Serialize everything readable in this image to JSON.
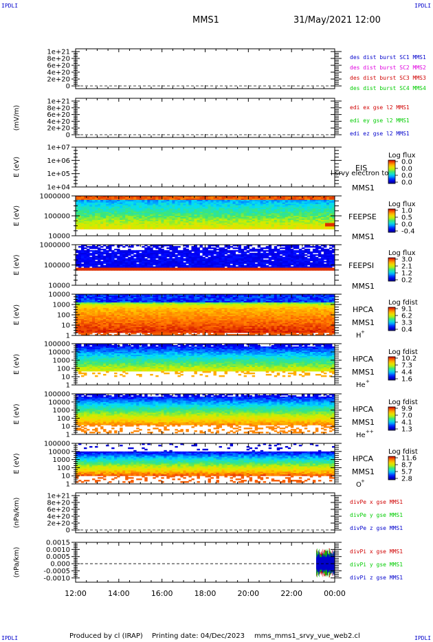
{
  "header": {
    "corner_label": "IPDLI",
    "spacecraft": "MMS1",
    "date_time": "31/May/2021 12:00"
  },
  "footer": {
    "produced_by": "Produced by cl (IRAP)",
    "printing_date": "Printing date: 04/Dec/2023",
    "file": "mms_mms1_srvy_vue_web2.cl"
  },
  "colors": {
    "blue": "#0000cc",
    "magenta": "#e000e0",
    "red": "#d00000",
    "green": "#00cc00"
  },
  "chart_data": [
    {
      "type": "line",
      "ylabel": "",
      "yticks": [
        "1e+21",
        "8e+20",
        "6e+20",
        "4e+20",
        "2e+20",
        "0"
      ],
      "zero_dashed": true,
      "legend": [
        {
          "text": "des dist burst SC1 MMS1",
          "color": "#0000cc"
        },
        {
          "text": "des dist burst SC2 MMS2",
          "color": "#e000e0"
        },
        {
          "text": "des dist burst SC3 MMS3",
          "color": "#d00000"
        },
        {
          "text": "des dist burst SC4 MMS4",
          "color": "#00cc00"
        }
      ]
    },
    {
      "type": "line",
      "ylabel": "(mV/m)",
      "yticks": [
        "1e+21",
        "8e+20",
        "6e+20",
        "4e+20",
        "2e+20",
        "0"
      ],
      "zero_dashed": true,
      "legend": [
        {
          "text": "edi ex gse l2 MMS1",
          "color": "#d00000"
        },
        {
          "text": "edi ey gse l2 MMS1",
          "color": "#00cc00"
        },
        {
          "text": "edi ez gse l2 MMS1",
          "color": "#0000cc"
        }
      ]
    },
    {
      "type": "heatmap",
      "ylabel": "E (eV)",
      "yticks": [
        "1e+07",
        "1e+06",
        "1e+05",
        "1e+04"
      ],
      "instrument": "EIS",
      "spacecraft": "MMS1",
      "overlay_text": "l srvy electron to",
      "colorbar_title": "Log flux",
      "colorbar_ticks": [
        "0.0",
        "0.0",
        "0.0",
        "0.0"
      ],
      "filled": false
    },
    {
      "type": "heatmap",
      "ylabel": "E (eV)",
      "yticks": [
        "1000000",
        "100000",
        "10000"
      ],
      "instrument": "FEEPSE",
      "spacecraft": "MMS1",
      "colorbar_title": "Log flux",
      "colorbar_ticks": [
        "1.0",
        "0.5",
        "0.0",
        "-0.4"
      ],
      "filled": true,
      "style": "feepse"
    },
    {
      "type": "heatmap",
      "ylabel": "E (eV)",
      "yticks": [
        "1000000",
        "100000",
        "10000"
      ],
      "instrument": "FEEPSI",
      "spacecraft": "MMS1",
      "colorbar_title": "Log flux",
      "colorbar_ticks": [
        "3.0",
        "2.1",
        "1.2",
        "0.2"
      ],
      "filled": true,
      "style": "feepsi"
    },
    {
      "type": "heatmap",
      "ylabel": "E (eV)",
      "yticks": [
        "10000",
        "1000",
        "100",
        "10",
        "1"
      ],
      "instrument": "HPCA",
      "spacecraft": "MMS1",
      "species": "H",
      "species_sup": "+",
      "colorbar_title": "Log fdist",
      "colorbar_ticks": [
        "9.1",
        "6.2",
        "3.3",
        "0.4"
      ],
      "filled": true,
      "style": "hplus"
    },
    {
      "type": "heatmap",
      "ylabel": "E (eV)",
      "yticks": [
        "100000",
        "10000",
        "1000",
        "100",
        "10",
        "1"
      ],
      "instrument": "HPCA",
      "spacecraft": "MMS1",
      "species": "He",
      "species_sup": "+",
      "colorbar_title": "Log fdist",
      "colorbar_ticks": [
        "10.2",
        "7.3",
        "4.4",
        "1.6"
      ],
      "filled": true,
      "style": "heplus"
    },
    {
      "type": "heatmap",
      "ylabel": "E (eV)",
      "yticks": [
        "100000",
        "10000",
        "1000",
        "100",
        "10",
        "1"
      ],
      "instrument": "HPCA",
      "spacecraft": "MMS1",
      "species": "He",
      "species_sup": "++",
      "colorbar_title": "Log fdist",
      "colorbar_ticks": [
        "9.9",
        "7.0",
        "4.1",
        "1.3"
      ],
      "filled": true,
      "style": "heplusplus"
    },
    {
      "type": "heatmap",
      "ylabel": "E (eV)",
      "yticks": [
        "100000",
        "10000",
        "1000",
        "100",
        "10",
        "1"
      ],
      "instrument": "HPCA",
      "spacecraft": "MMS1",
      "species": "O",
      "species_sup": "+",
      "colorbar_title": "Log fdist",
      "colorbar_ticks": [
        "11.6",
        "8.7",
        "5.7",
        "2.8"
      ],
      "filled": true,
      "style": "oplus"
    },
    {
      "type": "line",
      "ylabel": "(nPa/km)",
      "yticks": [
        "1e+21",
        "8e+20",
        "6e+20",
        "4e+20",
        "2e+20",
        "0"
      ],
      "zero_dashed": true,
      "legend": [
        {
          "text": "divPe x gse MMS1",
          "color": "#d00000"
        },
        {
          "text": "divPe y gse MMS1",
          "color": "#00cc00"
        },
        {
          "text": "divPe z gse MMS1",
          "color": "#0000cc"
        }
      ]
    },
    {
      "type": "line",
      "ylabel": "(nPa/km)",
      "yticks": [
        "0.0015",
        "0.0010",
        "0.0005",
        "0.000",
        "-0.0005",
        "-0.0010"
      ],
      "ylim": [
        -0.0013,
        0.0015
      ],
      "zero_dashed": true,
      "burst": {
        "start_hour": 23.15,
        "end_hour": 24.0,
        "amplitude": 0.0012
      },
      "legend": [
        {
          "text": "divPi x gse MMS1",
          "color": "#d00000"
        },
        {
          "text": "divPi y gse MMS1",
          "color": "#00cc00"
        },
        {
          "text": "divPi z gse MMS1",
          "color": "#0000cc"
        }
      ]
    }
  ],
  "x_axis": {
    "start_hour": 12,
    "end_hour": 24,
    "tick_labels": [
      "12:00",
      "14:00",
      "16:00",
      "18:00",
      "20:00",
      "22:00",
      "00:00"
    ]
  }
}
